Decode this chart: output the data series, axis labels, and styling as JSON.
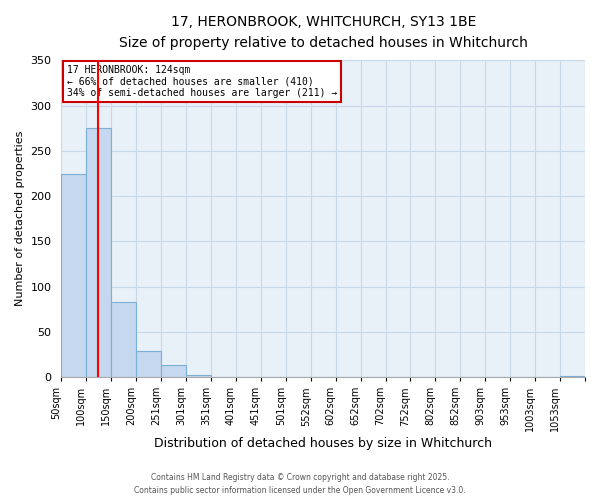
{
  "title_line1": "17, HERONBROOK, WHITCHURCH, SY13 1BE",
  "title_line2": "Size of property relative to detached houses in Whitchurch",
  "xlabel": "Distribution of detached houses by size in Whitchurch",
  "ylabel": "Number of detached properties",
  "bar_values": [
    224,
    275,
    83,
    29,
    13,
    2,
    0,
    0,
    0,
    0,
    0,
    0,
    0,
    0,
    0,
    0,
    0,
    0,
    0,
    0,
    1
  ],
  "bin_labels": [
    "50sqm",
    "100sqm",
    "150sqm",
    "200sqm",
    "251sqm",
    "301sqm",
    "351sqm",
    "401sqm",
    "451sqm",
    "501sqm",
    "552sqm",
    "602sqm",
    "652sqm",
    "702sqm",
    "752sqm",
    "802sqm",
    "852sqm",
    "903sqm",
    "953sqm",
    "1003sqm",
    "1053sqm"
  ],
  "n_bins": 21,
  "bar_color": "#c5d8ef",
  "bar_edge_color": "#7bafd4",
  "red_line_x": 124,
  "red_line_bin": 1.48,
  "ylim": [
    0,
    350
  ],
  "yticks": [
    0,
    50,
    100,
    150,
    200,
    250,
    300,
    350
  ],
  "annotation_title": "17 HERONBROOK: 124sqm",
  "annotation_line2": "← 66% of detached houses are smaller (410)",
  "annotation_line3": "34% of semi-detached houses are larger (211) →",
  "annotation_box_color": "#ffffff",
  "annotation_box_edge": "#cc0000",
  "plot_bg_color": "#e8f0f8",
  "footer_line1": "Contains HM Land Registry data © Crown copyright and database right 2025.",
  "footer_line2": "Contains public sector information licensed under the Open Government Licence v3.0."
}
